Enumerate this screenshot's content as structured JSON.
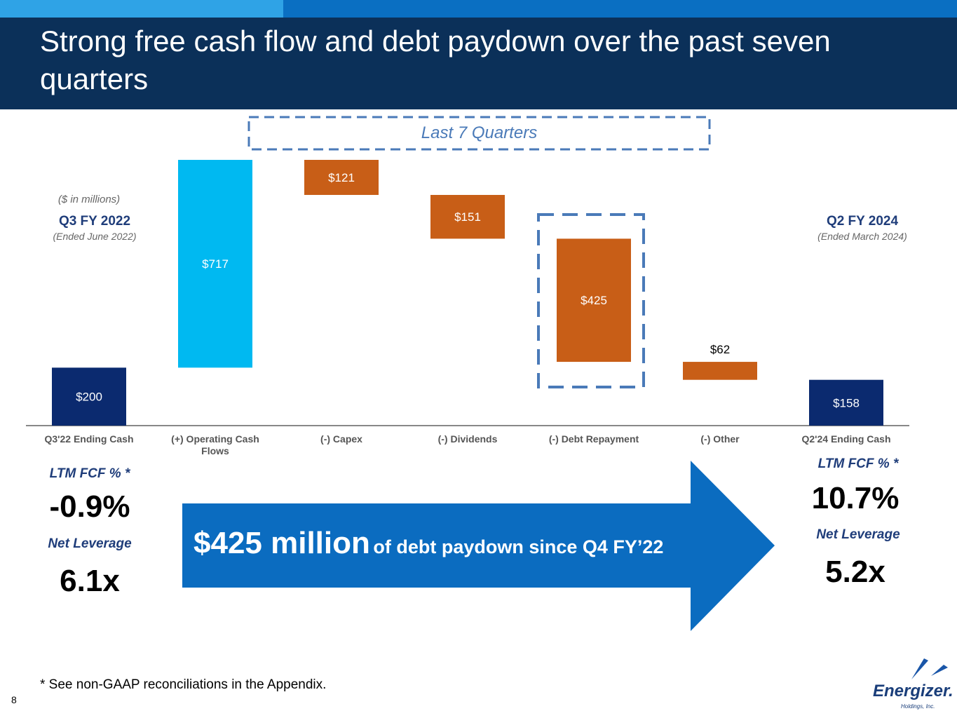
{
  "header": {
    "title": "Strong free cash flow and debt paydown over the past seven quarters"
  },
  "chart_data": {
    "type": "waterfall",
    "units_note": "($ in millions)",
    "bracket_label": "Last 7 Quarters",
    "categories": [
      "Q3'22 Ending Cash",
      "(+) Operating Cash Flows",
      "(-) Capex",
      "(-) Dividends",
      "(-) Debt Repayment",
      "(-) Other",
      "Q2'24 Ending Cash"
    ],
    "values": [
      200,
      717,
      -121,
      -151,
      -425,
      -62,
      158
    ],
    "value_labels": [
      "$200",
      "$717",
      "$121",
      "$151",
      "$425",
      "$62",
      "$158"
    ],
    "colors": [
      "#0b2a6f",
      "#00b9f1",
      "#c85e17",
      "#c85e17",
      "#c85e17",
      "#c85e17",
      "#0b2a6f"
    ]
  },
  "left": {
    "period": "Q3 FY 2022",
    "ended": "(Ended June 2022)",
    "fcf_label": "LTM FCF % *",
    "fcf": "-0.9%",
    "lev_label": "Net Leverage",
    "lev": "6.1x"
  },
  "right": {
    "period": "Q2 FY 2024",
    "ended": "(Ended March 2024)",
    "fcf_label": "LTM FCF % *",
    "fcf": "10.7%",
    "lev_label": "Net Leverage",
    "lev": "5.2x"
  },
  "arrow": {
    "big": "$425 million",
    "rest": "of debt paydown since Q4 FY’22"
  },
  "footnote": "* See non-GAAP reconciliations in the Appendix.",
  "page_number": "8",
  "logo": {
    "name": "Energizer.",
    "sub": "Holdings, Inc."
  }
}
